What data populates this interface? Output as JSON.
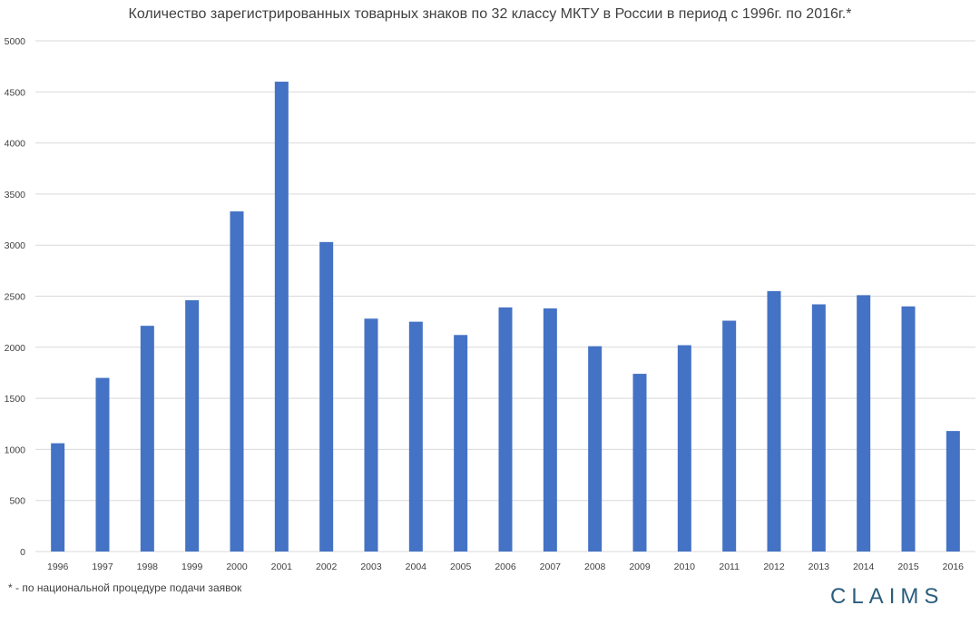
{
  "chart_data": {
    "type": "bar",
    "title": "Количество зарегистрированных товарных знаков по 32 классу МКТУ в России в период с 1996г. по 2016г.*",
    "categories": [
      "1996",
      "1997",
      "1998",
      "1999",
      "2000",
      "2001",
      "2002",
      "2003",
      "2004",
      "2005",
      "2006",
      "2007",
      "2008",
      "2009",
      "2010",
      "2011",
      "2012",
      "2013",
      "2014",
      "2015",
      "2016"
    ],
    "values": [
      1060,
      1700,
      2210,
      2460,
      3330,
      4600,
      3030,
      2280,
      2250,
      2120,
      2390,
      2380,
      2010,
      1740,
      2020,
      2260,
      2550,
      2420,
      2510,
      2400,
      1180
    ],
    "ylim": [
      0,
      5000
    ],
    "yticks": [
      0,
      500,
      1000,
      1500,
      2000,
      2500,
      3000,
      3500,
      4000,
      4500,
      5000
    ],
    "grid": true,
    "bar_color": "#4472c4",
    "xlabel": "",
    "ylabel": ""
  },
  "footnote": "* - по национальной процедуре подачи заявок",
  "brand": "CLAIMS"
}
